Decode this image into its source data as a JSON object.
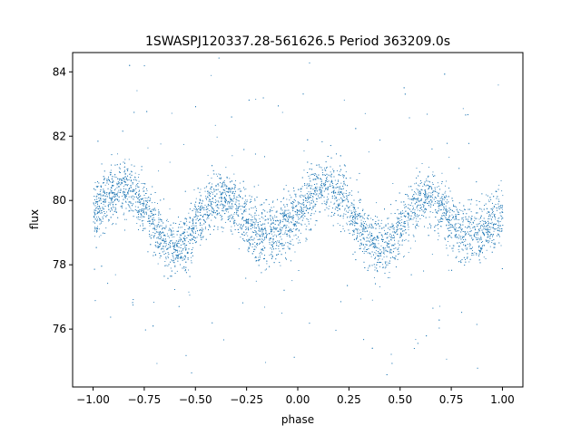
{
  "chart_data": {
    "type": "scatter",
    "title": "1SWASPJ120337.28-561626.5 Period 363209.0s",
    "xlabel": "phase",
    "ylabel": "flux",
    "xlim": [
      -1.1,
      1.1
    ],
    "ylim": [
      74.2,
      84.6
    ],
    "xticks": [
      -1.0,
      -0.75,
      -0.5,
      -0.25,
      0.0,
      0.25,
      0.5,
      0.75,
      1.0
    ],
    "xtick_labels": [
      "−1.00",
      "−0.75",
      "−0.50",
      "−0.25",
      "0.00",
      "0.25",
      "0.50",
      "0.75",
      "1.00"
    ],
    "yticks": [
      76,
      78,
      80,
      82,
      84
    ],
    "ytick_labels": [
      "76",
      "78",
      "80",
      "82",
      "84"
    ],
    "grid": false,
    "point_color": "#1f77b4",
    "series": [
      {
        "trend_x": [
          -1.0,
          -0.95,
          -0.9,
          -0.85,
          -0.8,
          -0.75,
          -0.7,
          -0.65,
          -0.6,
          -0.55,
          -0.5,
          -0.45,
          -0.4,
          -0.35,
          -0.3,
          -0.25,
          -0.2,
          -0.15,
          -0.1,
          -0.05,
          0.0,
          0.05,
          0.1,
          0.15,
          0.2,
          0.25,
          0.3,
          0.35,
          0.4,
          0.45,
          0.5,
          0.55,
          0.6,
          0.65,
          0.7,
          0.75,
          0.8,
          0.85,
          0.9,
          0.95,
          1.0
        ],
        "trend_y": [
          79.6,
          80.0,
          80.3,
          80.4,
          80.2,
          79.8,
          79.2,
          78.8,
          78.5,
          78.7,
          79.2,
          79.7,
          80.0,
          80.1,
          79.8,
          79.3,
          79.0,
          78.9,
          79.0,
          79.3,
          79.6,
          80.0,
          80.3,
          80.4,
          80.2,
          79.8,
          79.2,
          78.8,
          78.5,
          78.7,
          79.2,
          79.7,
          80.0,
          80.1,
          79.8,
          79.3,
          79.0,
          78.9,
          79.0,
          79.3,
          79.6
        ],
        "scatter_sd": 0.45,
        "n_points": 8000
      }
    ]
  }
}
